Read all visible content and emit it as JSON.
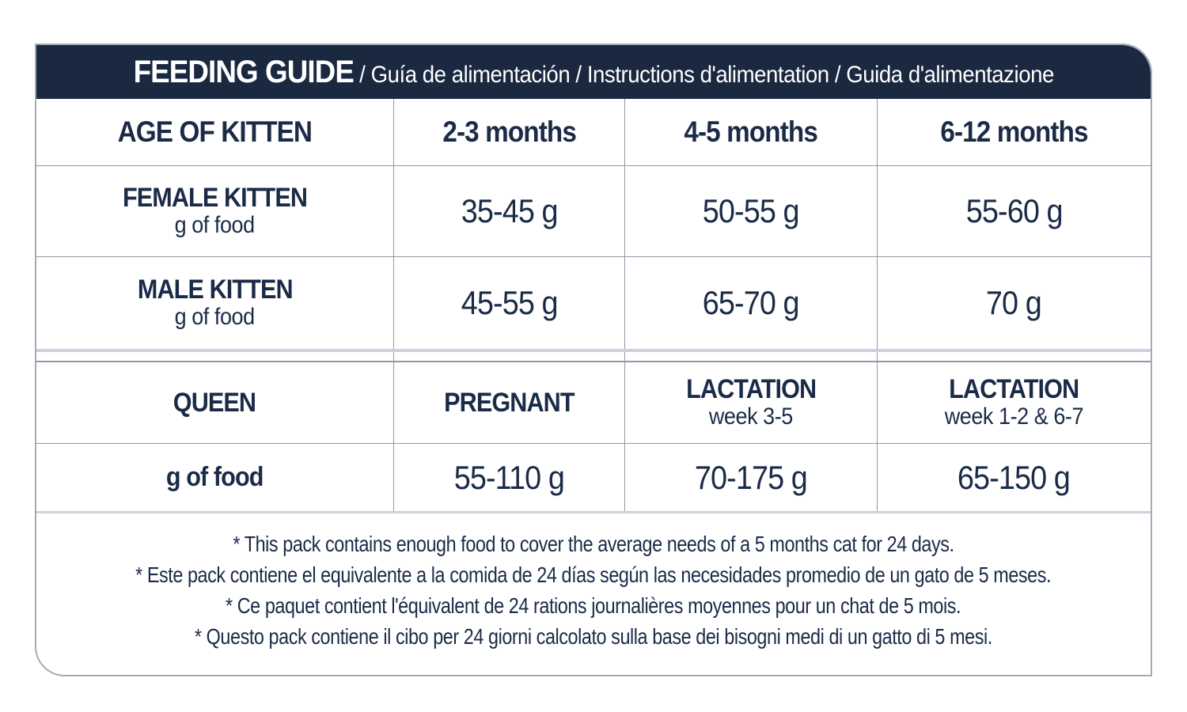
{
  "header": {
    "title": "FEEDING GUIDE",
    "subtitle": " / Guía de alimentación / Instructions d'alimentation / Guida d'alimentazione"
  },
  "table": {
    "columns": [
      "AGE OF KITTEN",
      "2-3 months",
      "4-5 months",
      "6-12 months"
    ],
    "kitten_rows": [
      {
        "label": "FEMALE KITTEN",
        "sublabel": "g of food",
        "values": [
          "35-45 g",
          "50-55 g",
          "55-60 g"
        ]
      },
      {
        "label": "MALE KITTEN",
        "sublabel": "g of food",
        "values": [
          "45-55 g",
          "65-70 g",
          "70 g"
        ]
      }
    ],
    "queen": {
      "label": "QUEEN",
      "cells": [
        {
          "title": "PREGNANT",
          "sub": ""
        },
        {
          "title": "LACTATION",
          "sub": "week 3-5"
        },
        {
          "title": "LACTATION",
          "sub": "week 1-2 & 6-7"
        }
      ]
    },
    "queen_amounts": {
      "label": "g of food",
      "values": [
        "55-110 g",
        "70-175 g",
        "65-150 g"
      ]
    }
  },
  "notes": [
    "* This pack contains enough food to cover the average needs of a 5 months cat for 24 days.",
    "* Este pack contiene el equivalente a la comida de 24 días según las necesidades promedio de un gato de 5 meses.",
    "* Ce paquet contient l'équivalent de 24 rations journalières moyennes pour un chat de 5 mois.",
    "* Questo pack contiene il cibo per 24 giorni calcolato sulla base dei bisogni medi di un gatto di 5 mesi."
  ],
  "colors": {
    "header_background": "#1a2840",
    "text_navy": "#1b2b47",
    "thin_line": "#8f97a6",
    "thick_line": "#ccd1dc",
    "outer_border": "#a3aab6",
    "background": "#ffffff"
  }
}
